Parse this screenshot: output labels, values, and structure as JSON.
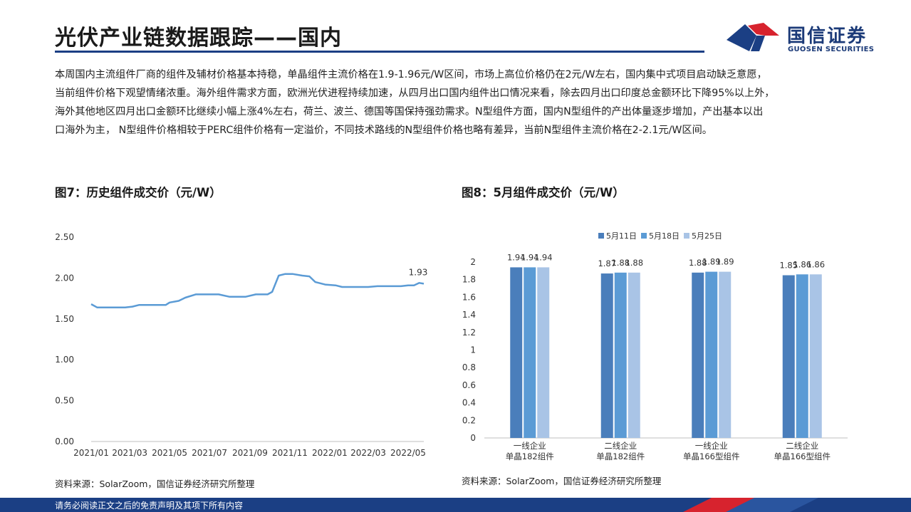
{
  "header": {
    "title": "光伏产业链数据跟踪——国内"
  },
  "logo": {
    "name_cn": "国信证券",
    "name_en": "GUOSEN SECURITIES"
  },
  "summary": {
    "lines": [
      "本周国内主流组件厂商的组件及辅材价格基本持稳，单晶组件主流价格在1.9-1.96元/W区间，市场上高位价格仍在2元/W左右，国内集中式项目启动缺乏意愿，",
      "当前组件价格下观望情绪浓重。海外组件需求方面，欧洲光伏进程持续加速，从四月出口国内组件出口情况来看，除去四月出口印度总金额环比下降95%以上外，",
      "海外其他地区四月出口金额环比继续小幅上涨4%左右，荷兰、波兰、德国等国保持强劲需求。N型组件方面，国内N型组件的产出体量逐步增加，产出基本以出",
      "口海外为主， N型组件价格相较于PERC组件价格有一定溢价，不同技术路线的N型组件价格也略有差异，当前N型组件主流价格在2-2.1元/W区间。"
    ]
  },
  "figure7": {
    "title": "图7：历史组件成交价（元/W）",
    "source": "资料来源：SolarZoom，国信证券经济研究所整理"
  },
  "figure8": {
    "title": "图8：5月组件成交价（元/W）",
    "source": "资料来源：SolarZoom，国信证券经济研究所整理"
  },
  "footer": {
    "disclaimer": "请务必阅读正文之后的免责声明及其项下所有内容"
  },
  "colors": {
    "brand_blue": "#1b3f84",
    "brand_red": "#d7232e",
    "line": "#5b9bd5",
    "bar_1": "#4a7ebb",
    "bar_2": "#5b9bd5",
    "bar_3": "#a9c4e6"
  },
  "chart_data": [
    {
      "type": "line",
      "ylim": [
        0.0,
        2.5
      ],
      "yticks": [
        "0.00",
        "0.50",
        "1.00",
        "1.50",
        "2.00",
        "2.50"
      ],
      "xticks": [
        "2021/01",
        "2021/03",
        "2021/05",
        "2021/07",
        "2021/09",
        "2021/11",
        "2022/01",
        "2022/03",
        "2022/05"
      ],
      "x_range": [
        "2021-01-01",
        "2022-05-25"
      ],
      "series": [
        {
          "points": [
            [
              "2021-01-01",
              1.68
            ],
            [
              "2021-01-10",
              1.64
            ],
            [
              "2021-02-01",
              1.64
            ],
            [
              "2021-02-22",
              1.64
            ],
            [
              "2021-03-05",
              1.65
            ],
            [
              "2021-03-15",
              1.67
            ],
            [
              "2021-04-05",
              1.67
            ],
            [
              "2021-04-25",
              1.67
            ],
            [
              "2021-05-01",
              1.7
            ],
            [
              "2021-05-15",
              1.72
            ],
            [
              "2021-05-25",
              1.76
            ],
            [
              "2021-06-10",
              1.8
            ],
            [
              "2021-07-01",
              1.8
            ],
            [
              "2021-07-15",
              1.8
            ],
            [
              "2021-08-01",
              1.77
            ],
            [
              "2021-08-25",
              1.77
            ],
            [
              "2021-09-10",
              1.8
            ],
            [
              "2021-09-28",
              1.8
            ],
            [
              "2021-10-05",
              1.83
            ],
            [
              "2021-10-15",
              2.03
            ],
            [
              "2021-10-25",
              2.05
            ],
            [
              "2021-11-05",
              2.05
            ],
            [
              "2021-11-20",
              2.03
            ],
            [
              "2021-12-01",
              2.02
            ],
            [
              "2021-12-10",
              1.95
            ],
            [
              "2021-12-25",
              1.92
            ],
            [
              "2022-01-10",
              1.91
            ],
            [
              "2022-01-20",
              1.89
            ],
            [
              "2022-02-10",
              1.89
            ],
            [
              "2022-03-01",
              1.89
            ],
            [
              "2022-03-15",
              1.9
            ],
            [
              "2022-04-01",
              1.9
            ],
            [
              "2022-04-20",
              1.9
            ],
            [
              "2022-05-01",
              1.91
            ],
            [
              "2022-05-10",
              1.91
            ],
            [
              "2022-05-18",
              1.94
            ],
            [
              "2022-05-25",
              1.93
            ]
          ]
        }
      ],
      "annotation": {
        "text": "1.93",
        "x": "2022-05-25",
        "y": 1.93
      }
    },
    {
      "type": "bar",
      "categories": [
        [
          "一线企业",
          "单晶182组件"
        ],
        [
          "二线企业",
          "单晶182组件"
        ],
        [
          "一线企业",
          "单晶166型组件"
        ],
        [
          "二线企业",
          "单晶166型组件"
        ]
      ],
      "series": [
        {
          "name": "5月11日",
          "values": [
            1.94,
            1.87,
            1.88,
            1.85
          ]
        },
        {
          "name": "5月18日",
          "values": [
            1.94,
            1.88,
            1.89,
            1.86
          ]
        },
        {
          "name": "5月25日",
          "values": [
            1.94,
            1.88,
            1.89,
            1.86
          ]
        }
      ],
      "data_labels": [
        [
          "1.94",
          "1.87",
          "1.88",
          "1.85"
        ],
        [
          "1.94",
          "1.88",
          "1.89",
          "1.86"
        ],
        [
          "1.94",
          "1.88",
          "1.89",
          "1.86"
        ]
      ],
      "ylim": [
        0,
        2
      ],
      "yticks": [
        "0",
        "0.2",
        "0.4",
        "0.6",
        "0.8",
        "1",
        "1.2",
        "1.4",
        "1.6",
        "1.8",
        "2"
      ],
      "legend": "top"
    }
  ]
}
